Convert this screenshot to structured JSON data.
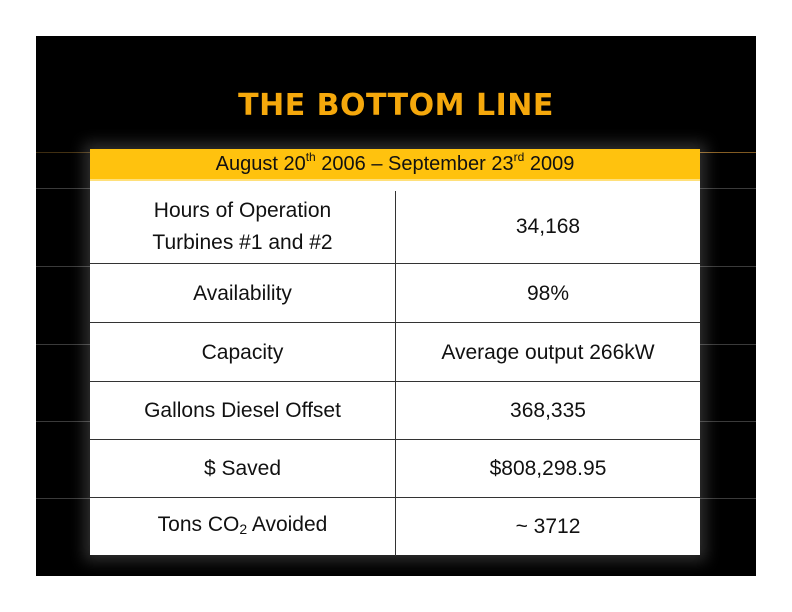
{
  "title": "THE BOTTOM LINE",
  "date_range": {
    "start_text": "August 20",
    "start_sup": "th",
    "start_year": " 2006 – September 23",
    "end_sup": "rd",
    "end_year": " 2009"
  },
  "rows": [
    {
      "label_line1": "Hours of Operation",
      "label_line2": "Turbines #1 and #2",
      "value": "34,168"
    },
    {
      "label": "Availability",
      "value": "98%"
    },
    {
      "label": "Capacity",
      "value": "Average output 266kW"
    },
    {
      "label": "Gallons Diesel Offset",
      "value": "368,335"
    },
    {
      "label": "$ Saved",
      "value": "$808,298.95"
    },
    {
      "label_pre": "Tons CO",
      "label_sub": "2",
      "label_post": " Avoided",
      "value": "~ 3712"
    }
  ],
  "colors": {
    "background": "#000000",
    "title": "#f5a80c",
    "header_fill": "#ffc20e",
    "table_fill": "#ffffff"
  }
}
